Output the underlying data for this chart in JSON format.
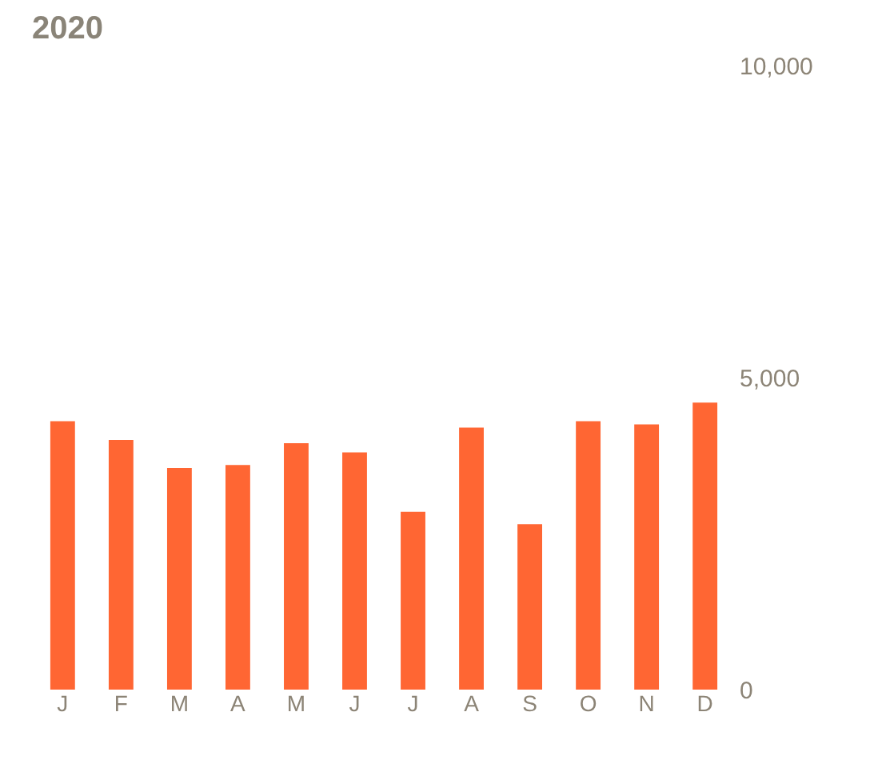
{
  "chart_data": {
    "type": "bar",
    "title": "2020",
    "categories": [
      "J",
      "F",
      "M",
      "A",
      "M",
      "J",
      "J",
      "A",
      "S",
      "O",
      "N",
      "D"
    ],
    "series": [
      {
        "color": "#ff6633",
        "values": [
          4300,
          4000,
          3550,
          3600,
          3950,
          3800,
          2850,
          4200,
          2650,
          4300,
          4250,
          4600
        ]
      }
    ],
    "ylim": [
      0,
      10000
    ],
    "yticks": [
      0,
      {
        "value": 5000,
        "label": "5,000"
      },
      {
        "value": 10000,
        "label": "10,000"
      }
    ],
    "grid": false,
    "legend": false
  }
}
